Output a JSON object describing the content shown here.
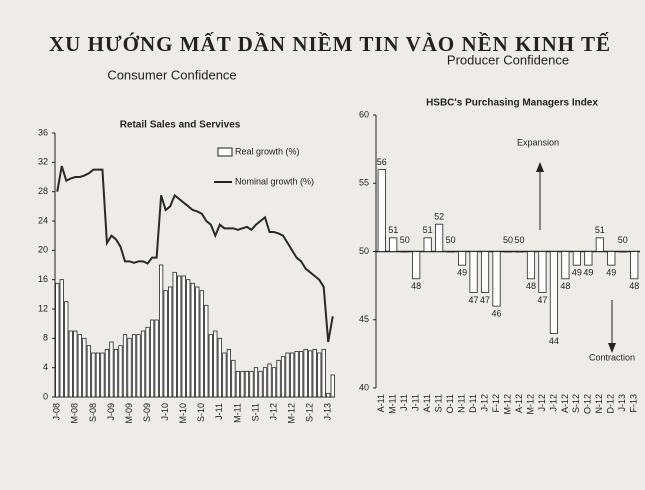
{
  "title": "XU HƯỚNG MẤT DẦN NIỀM TIN VÀO NỀN KINH TẾ",
  "chart_data": [
    {
      "type": "combo",
      "heading": "Consumer Confidence",
      "title": "Retail Sales and Servives",
      "categories": [
        "J-08",
        null,
        null,
        null,
        "M-08",
        null,
        null,
        null,
        "S-08",
        null,
        null,
        null,
        "J-09",
        null,
        null,
        null,
        "M-09",
        null,
        null,
        null,
        "S-09",
        null,
        null,
        null,
        "J-10",
        null,
        null,
        null,
        "M-10",
        null,
        null,
        null,
        "S-10",
        null,
        null,
        null,
        "J-11",
        null,
        null,
        null,
        "M-11",
        null,
        null,
        null,
        "S-11",
        null,
        null,
        null,
        "J-12",
        null,
        null,
        null,
        "M-12",
        null,
        null,
        null,
        "S-12",
        null,
        null,
        null,
        "J-13",
        null
      ],
      "series": [
        {
          "name": "Real growth (%)",
          "type": "bar",
          "color": "#ffffff",
          "values": [
            15.5,
            16,
            13,
            9,
            9,
            8.5,
            8,
            7,
            6,
            6,
            6,
            6.5,
            7.5,
            6.5,
            7,
            8.5,
            8,
            8.5,
            8.5,
            9,
            9.5,
            10.5,
            10.5,
            18,
            14.5,
            15,
            17,
            16.5,
            16.5,
            16,
            15.5,
            15,
            14.5,
            12.5,
            8.5,
            9,
            8,
            6,
            6.5,
            5,
            3.5,
            3.5,
            3.5,
            3.5,
            4,
            3.5,
            4,
            4.5,
            4,
            5,
            5.5,
            6,
            6,
            6.2,
            6.2,
            6.5,
            6.3,
            6.5,
            6,
            6.5,
            0.5,
            3
          ]
        },
        {
          "name": "Nominal growth (%)",
          "type": "line",
          "color": "#2a2a2a",
          "values": [
            28,
            31.5,
            29.5,
            29.8,
            30,
            30,
            30.2,
            30.5,
            31,
            31,
            31,
            21,
            22,
            21.5,
            20.5,
            18.5,
            18.5,
            18.3,
            18.5,
            18.5,
            18.2,
            19,
            19,
            27.5,
            25.5,
            26,
            27.5,
            27,
            26.5,
            26,
            25.5,
            25.3,
            25,
            24,
            23.5,
            22,
            23.5,
            23,
            23,
            23,
            22.8,
            23,
            23.2,
            22.8,
            23.5,
            24,
            24.5,
            22.5,
            22.5,
            22.3,
            22,
            21,
            20,
            19,
            18.5,
            17.5,
            17,
            16.5,
            16,
            15,
            7.5,
            11
          ]
        }
      ],
      "ylim": [
        0,
        36
      ],
      "yticks": [
        0,
        4,
        8,
        12,
        16,
        20,
        24,
        28,
        32,
        36
      ],
      "grid": false
    },
    {
      "type": "bar",
      "heading": "Producer Confidence",
      "title": "HSBC's Purchasing Managers Index",
      "categories": [
        "A-11",
        "M-11",
        "J-11",
        "J-11",
        "A-11",
        "S-11",
        "O-11",
        "N-11",
        "D-11",
        "J-12",
        "F-12",
        "M-12",
        "A-12",
        "M-12",
        "J-12",
        "J-12",
        "A-12",
        "S-12",
        "O-12",
        "N-12",
        "D-12",
        "J-13",
        "F-13"
      ],
      "values": [
        56,
        51,
        50,
        48,
        51,
        52,
        50,
        49,
        47,
        47,
        46,
        50,
        50,
        48,
        47,
        44,
        48,
        49,
        49,
        51,
        49,
        50,
        48
      ],
      "color": "#ffffff",
      "baseline": 50,
      "ylim": [
        40,
        60
      ],
      "yticks": [
        40,
        45,
        50,
        55,
        60
      ],
      "grid": false,
      "annotations": [
        "Expansion",
        "Contraction"
      ]
    }
  ]
}
